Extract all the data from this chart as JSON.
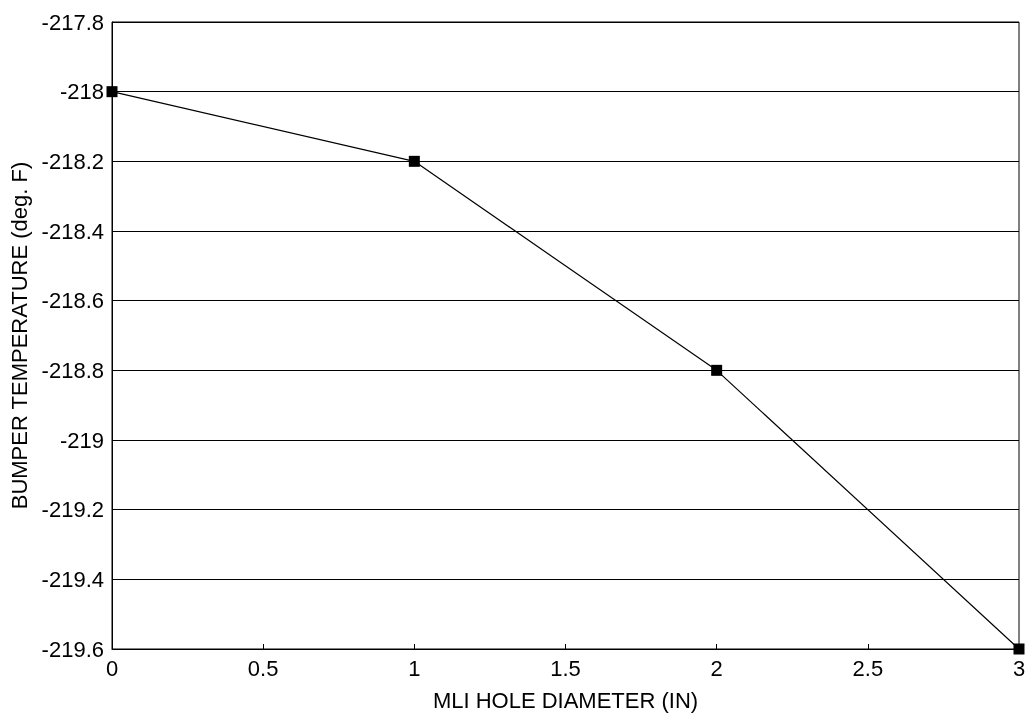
{
  "chart_data": {
    "type": "line",
    "xlabel": "MLI HOLE DIAMETER (IN)",
    "ylabel": "BUMPER TEMPERATURE (deg. F)",
    "x": [
      0,
      1,
      2,
      3
    ],
    "series": [
      {
        "color": "#000000",
        "values": [
          -218,
          -218.2,
          -218.8,
          -219.6
        ]
      }
    ],
    "xlim": [
      0,
      3
    ],
    "xticks": [
      0,
      0.5,
      1,
      1.5,
      2,
      2.5,
      3
    ],
    "ylim": [
      -219.6,
      -217.8
    ],
    "yticks": [
      -219.6,
      -219.4,
      -219.2,
      -219,
      -218.8,
      -218.6,
      -218.4,
      -218.2,
      -218,
      -217.8
    ],
    "grid": "y",
    "marker": "square",
    "line_style": "solid"
  }
}
